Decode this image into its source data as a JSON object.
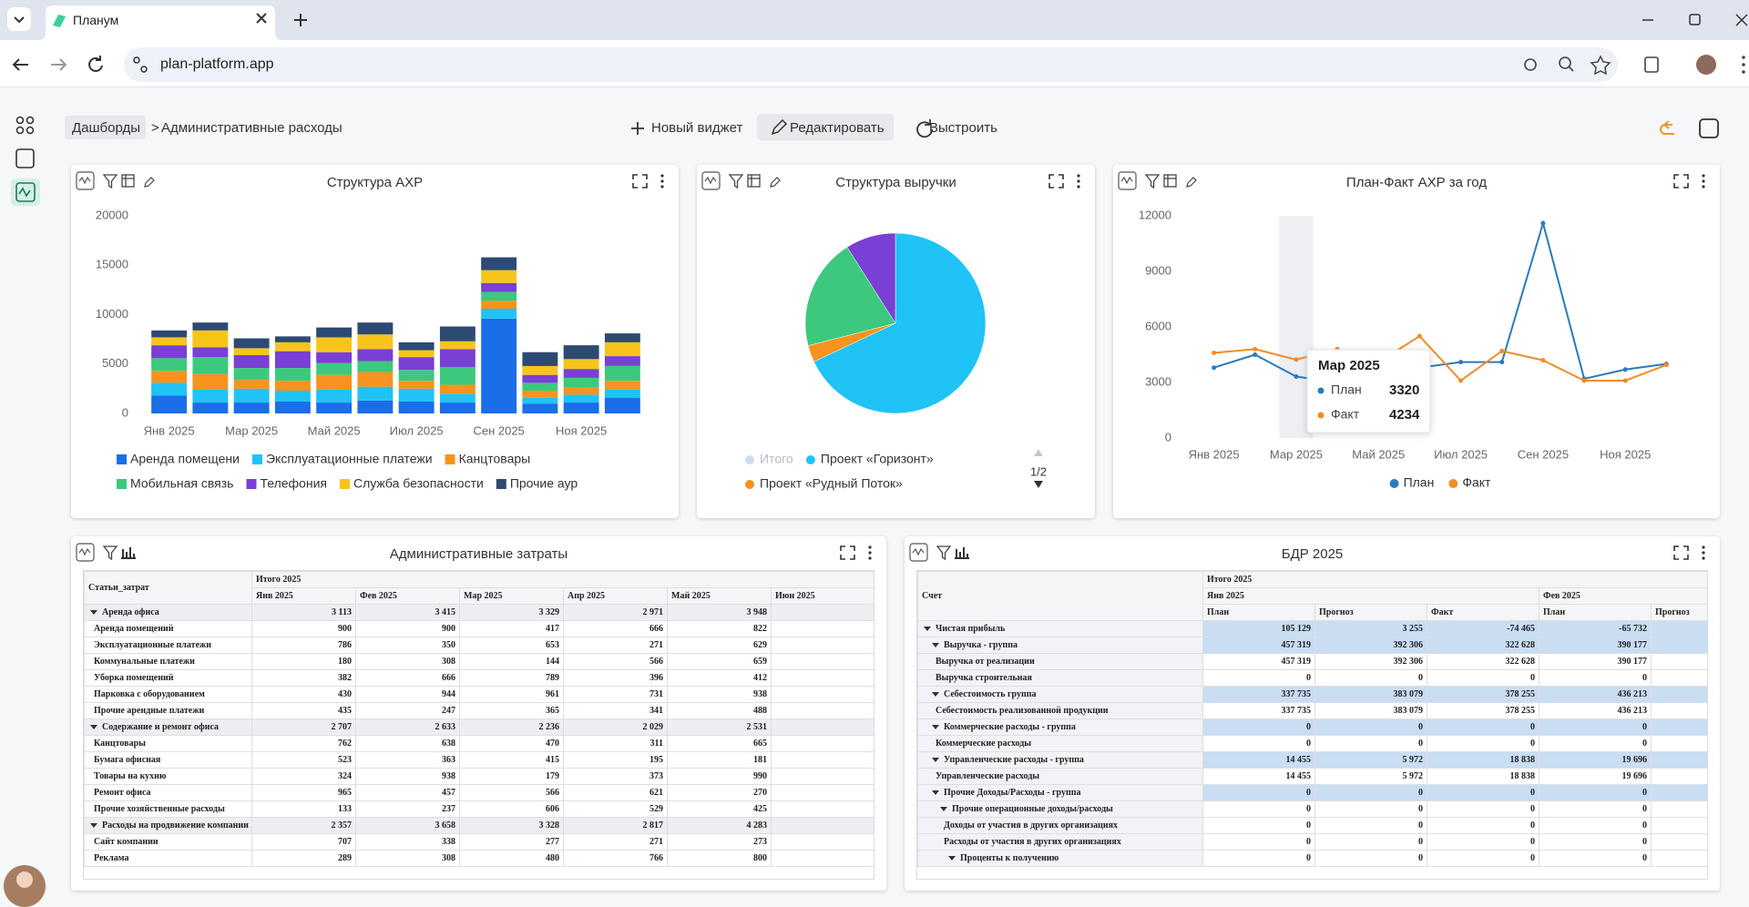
{
  "browser": {
    "tab_title": "Планум",
    "url": "plan-platform.app"
  },
  "toolbar": {
    "breadcrumb_root": "Дашборды",
    "breadcrumb_separator": ">",
    "breadcrumb_current": "Административные расходы",
    "new_widget": "Новый виджет",
    "edit": "Редактировать",
    "arrange": "Выстроить"
  },
  "chart_data": [
    {
      "type": "bar",
      "title": "Структура АХР",
      "stacked": true,
      "grid": false,
      "categories": [
        "Янв 2025",
        null,
        "Мар 2025",
        null,
        "Май 2025",
        null,
        "Июл 2025",
        null,
        "Сен 2025",
        null,
        "Ноя 2025",
        null
      ],
      "ylim": [
        0,
        20000
      ],
      "yticks": [
        0,
        5000,
        10000,
        15000,
        20000
      ],
      "series": [
        {
          "name": "Аренда помещени",
          "color": "#1a6ee8",
          "values": [
            1800,
            1100,
            1100,
            1200,
            1100,
            1300,
            1200,
            1100,
            9600,
            1000,
            1100,
            1600
          ]
        },
        {
          "name": "Эксплуатационные платежи",
          "color": "#1fc3f5",
          "values": [
            1300,
            1300,
            1400,
            1100,
            1300,
            1400,
            1300,
            900,
            1000,
            600,
            800,
            800
          ]
        },
        {
          "name": "Канцтовары",
          "color": "#f7931e",
          "values": [
            1200,
            1600,
            900,
            1000,
            1500,
            1500,
            800,
            900,
            800,
            700,
            700,
            900
          ]
        },
        {
          "name": "Мобильная связь",
          "color": "#3cc97e",
          "values": [
            1300,
            1700,
            1200,
            1300,
            1200,
            1100,
            1100,
            1800,
            900,
            800,
            1000,
            1500
          ]
        },
        {
          "name": "Телефония",
          "color": "#7a3fd4",
          "values": [
            1300,
            1000,
            1300,
            1700,
            1100,
            1200,
            1300,
            1800,
            900,
            800,
            900,
            1000
          ]
        },
        {
          "name": "Служба безопасности",
          "color": "#f7c51a",
          "values": [
            800,
            1700,
            700,
            900,
            1500,
            1500,
            700,
            800,
            1300,
            900,
            1000,
            1400
          ]
        },
        {
          "name": "Прочие аур",
          "color": "#2d4a73",
          "values": [
            700,
            800,
            1000,
            600,
            1000,
            1200,
            800,
            1500,
            1300,
            1400,
            1400,
            900
          ]
        }
      ]
    },
    {
      "type": "pie",
      "title": "Структура выручки",
      "values": [
        68,
        3,
        20,
        9
      ],
      "labels": [
        "Проект «Горизонт»",
        "Проект «Рудный Поток»",
        null,
        null
      ],
      "colors": [
        "#1fc3f5",
        "#f7931e",
        "#3cc97e",
        "#7a3fd4"
      ],
      "legend": [
        {
          "name": "Итого",
          "color": "#cfdcf0",
          "disabled": true
        },
        {
          "name": "Проект «Горизонт»",
          "color": "#1fc3f5",
          "disabled": false
        },
        {
          "name": "Проект «Рудный Поток»",
          "color": "#f7931e",
          "disabled": false
        }
      ],
      "legend_page": "1/2"
    },
    {
      "type": "line",
      "title": "План-Факт АХР за год",
      "grid": false,
      "categories": [
        "Янв 2025",
        null,
        "Мар 2025",
        null,
        "Май 2025",
        null,
        "Июл 2025",
        null,
        "Сен 2025",
        null,
        "Ноя 2025",
        null
      ],
      "ylim": [
        0,
        12000
      ],
      "yticks": [
        0,
        3000,
        6000,
        9000,
        12000
      ],
      "series": [
        {
          "name": "План",
          "color": "#2b7bba",
          "values": [
            3800,
            4500,
            3320,
            3000,
            4500,
            3800,
            4100,
            4100,
            11600,
            3200,
            3700,
            4000
          ]
        },
        {
          "name": "Факт",
          "color": "#f28c28",
          "values": [
            4600,
            4800,
            4234,
            4800,
            4100,
            5500,
            3100,
            4700,
            4200,
            3100,
            3100,
            3950
          ]
        }
      ],
      "tooltip_index": 2
    }
  ],
  "tables": [
    {
      "title": "Административные затраты",
      "corner": "Статьи_затрат",
      "group_color": "#eceef1",
      "label_color": "#ffffff",
      "header": {
        "total": "Итого 2025",
        "months": [
          {
            "label": "Янв 2025"
          },
          {
            "label": "Фев 2025"
          },
          {
            "label": "Мар 2025"
          },
          {
            "label": "Апр 2025"
          },
          {
            "label": "Май 2025"
          },
          {
            "label": "Июн 2025"
          }
        ]
      },
      "rows": [
        {
          "label": "Аренда офиса",
          "level": 0,
          "group": true,
          "values": [
            "3 113",
            "3 415",
            "3 329",
            "2 971",
            "3 948"
          ]
        },
        {
          "label": "Аренда помещений",
          "level": 0,
          "group": false,
          "values": [
            "900",
            "900",
            "417",
            "666",
            "822"
          ]
        },
        {
          "label": "Эксплуатационные платежи",
          "level": 0,
          "group": false,
          "values": [
            "786",
            "350",
            "653",
            "271",
            "629"
          ]
        },
        {
          "label": "Коммунальные платежи",
          "level": 0,
          "group": false,
          "values": [
            "180",
            "308",
            "144",
            "566",
            "659"
          ]
        },
        {
          "label": "Уборка помещений",
          "level": 0,
          "group": false,
          "values": [
            "382",
            "666",
            "789",
            "396",
            "412"
          ]
        },
        {
          "label": "Парковка с оборудованием",
          "level": 0,
          "group": false,
          "values": [
            "430",
            "944",
            "961",
            "731",
            "938"
          ]
        },
        {
          "label": "Прочие арендные платежи",
          "level": 0,
          "group": false,
          "values": [
            "435",
            "247",
            "365",
            "341",
            "488"
          ]
        },
        {
          "label": "Содержание и ремонт офиса",
          "level": 0,
          "group": true,
          "values": [
            "2 707",
            "2 633",
            "2 236",
            "2 029",
            "2 531"
          ]
        },
        {
          "label": "Канцтовары",
          "level": 0,
          "group": false,
          "values": [
            "762",
            "638",
            "470",
            "311",
            "665"
          ]
        },
        {
          "label": "Бумага офисная",
          "level": 0,
          "group": false,
          "values": [
            "523",
            "363",
            "415",
            "195",
            "181"
          ]
        },
        {
          "label": "Товары на кухню",
          "level": 0,
          "group": false,
          "values": [
            "324",
            "938",
            "179",
            "373",
            "990"
          ]
        },
        {
          "label": "Ремонт офиса",
          "level": 0,
          "group": false,
          "values": [
            "965",
            "457",
            "566",
            "621",
            "270"
          ]
        },
        {
          "label": "Прочие хозяйственные расходы",
          "level": 0,
          "group": false,
          "values": [
            "133",
            "237",
            "606",
            "529",
            "425"
          ]
        },
        {
          "label": "Расходы на продвижение компании",
          "level": 0,
          "group": true,
          "values": [
            "2 357",
            "3 658",
            "3 328",
            "2 817",
            "4 283"
          ]
        },
        {
          "label": "Сайт компании",
          "level": 0,
          "group": false,
          "values": [
            "707",
            "338",
            "277",
            "271",
            "273"
          ]
        },
        {
          "label": "Реклама",
          "level": 0,
          "group": false,
          "values": [
            "289",
            "308",
            "480",
            "766",
            "800"
          ]
        }
      ]
    },
    {
      "title": "БДР 2025",
      "corner": "Счет",
      "group_color": "#c9ddf3",
      "label_color": "#f1f3f6",
      "header": {
        "total": "Итого 2025",
        "months": [
          {
            "label": "Янв 2025",
            "measures": [
              "План",
              "Прогноз",
              "Факт"
            ]
          },
          {
            "label": "Фев 2025",
            "measures": [
              "План",
              "Прогноз"
            ]
          }
        ]
      },
      "rows": [
        {
          "label": "Чистая прибыль",
          "level": 0,
          "group": true,
          "values": [
            "105 129",
            "3 255",
            "-74 465",
            "-65 732"
          ]
        },
        {
          "label": "Выручка - группа",
          "level": 1,
          "group": true,
          "values": [
            "457 319",
            "392 306",
            "322 628",
            "390 177"
          ]
        },
        {
          "label": "Выручка от реализации",
          "level": 1,
          "group": false,
          "values": [
            "457 319",
            "392 306",
            "322 628",
            "390 177"
          ]
        },
        {
          "label": "Выручка строительная",
          "level": 1,
          "group": false,
          "values": [
            "0",
            "0",
            "0",
            "0"
          ]
        },
        {
          "label": "Себестоимость группа",
          "level": 1,
          "group": true,
          "values": [
            "337 735",
            "383 079",
            "378 255",
            "436 213"
          ]
        },
        {
          "label": "Себестоимость реализованной продукции",
          "level": 1,
          "group": false,
          "values": [
            "337 735",
            "383 079",
            "378 255",
            "436 213"
          ]
        },
        {
          "label": "Коммерческие расходы - группа",
          "level": 1,
          "group": true,
          "values": [
            "0",
            "0",
            "0",
            "0"
          ]
        },
        {
          "label": "Коммерческие расходы",
          "level": 1,
          "group": false,
          "values": [
            "0",
            "0",
            "0",
            "0"
          ]
        },
        {
          "label": "Управленческие расходы - группа",
          "level": 1,
          "group": true,
          "values": [
            "14 455",
            "5 972",
            "18 838",
            "19 696"
          ]
        },
        {
          "label": "Управленческие расходы",
          "level": 1,
          "group": false,
          "values": [
            "14 455",
            "5 972",
            "18 838",
            "19 696"
          ]
        },
        {
          "label": "Прочие Доходы/Расходы - группа",
          "level": 1,
          "group": true,
          "values": [
            "0",
            "0",
            "0",
            "0"
          ]
        },
        {
          "label": "Прочие операционные доходы/расходы",
          "level": 2,
          "group": true,
          "values": [
            "0",
            "0",
            "0",
            "0"
          ]
        },
        {
          "label": "Доходы от участия в других организациях",
          "level": 2,
          "group": false,
          "values": [
            "0",
            "0",
            "0",
            "0"
          ]
        },
        {
          "label": "Расходы от участия в других организациях",
          "level": 2,
          "group": false,
          "values": [
            "0",
            "0",
            "0",
            "0"
          ]
        },
        {
          "label": "Проценты к получению",
          "level": 3,
          "group": true,
          "values": [
            "0",
            "0",
            "0",
            "0"
          ]
        }
      ]
    }
  ]
}
